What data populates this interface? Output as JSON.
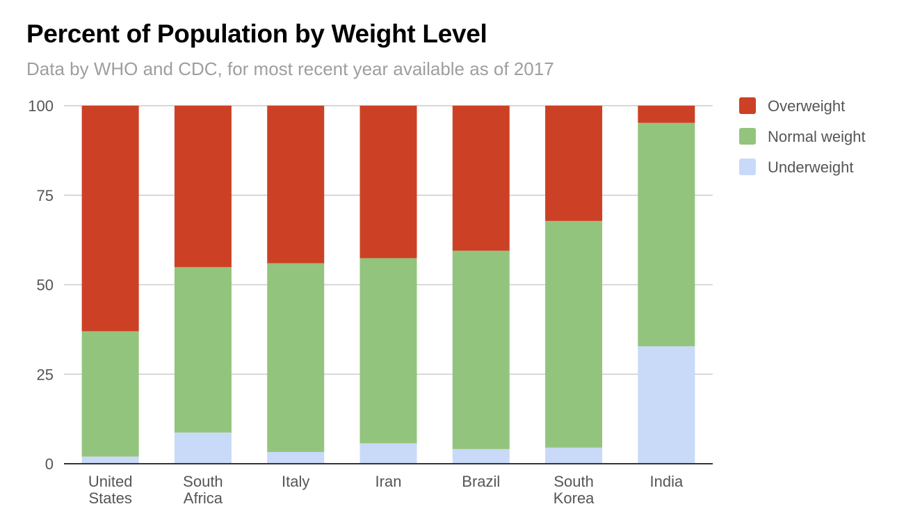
{
  "title": "Percent of Population by Weight Level",
  "subtitle": "Data by WHO and CDC, for most recent year available as of 2017",
  "chart_data": {
    "type": "bar",
    "stacked": true,
    "categories": [
      [
        "United",
        "States"
      ],
      [
        "South",
        "Africa"
      ],
      [
        "Italy"
      ],
      [
        "Iran"
      ],
      [
        "Brazil"
      ],
      [
        "South",
        "Korea"
      ],
      [
        "India"
      ]
    ],
    "series": [
      {
        "name": "Underweight",
        "color": "#c9d9f8",
        "values": [
          2,
          8.7,
          3.3,
          5.7,
          4.1,
          4.5,
          32.8
        ]
      },
      {
        "name": "Normal weight",
        "color": "#93c47d",
        "values": [
          35,
          46.2,
          52.7,
          51.7,
          55.4,
          63.3,
          62.4
        ]
      },
      {
        "name": "Overweight",
        "color": "#cc4125",
        "values": [
          63,
          45.1,
          44,
          42.6,
          40.5,
          32.2,
          4.8
        ]
      }
    ],
    "legend_order": [
      "Overweight",
      "Normal weight",
      "Underweight"
    ],
    "legend_position": "top-right",
    "ylim": [
      0,
      100
    ],
    "yticks": [
      0,
      25,
      50,
      75,
      100
    ],
    "grid": true,
    "xlabel": "",
    "ylabel": ""
  }
}
